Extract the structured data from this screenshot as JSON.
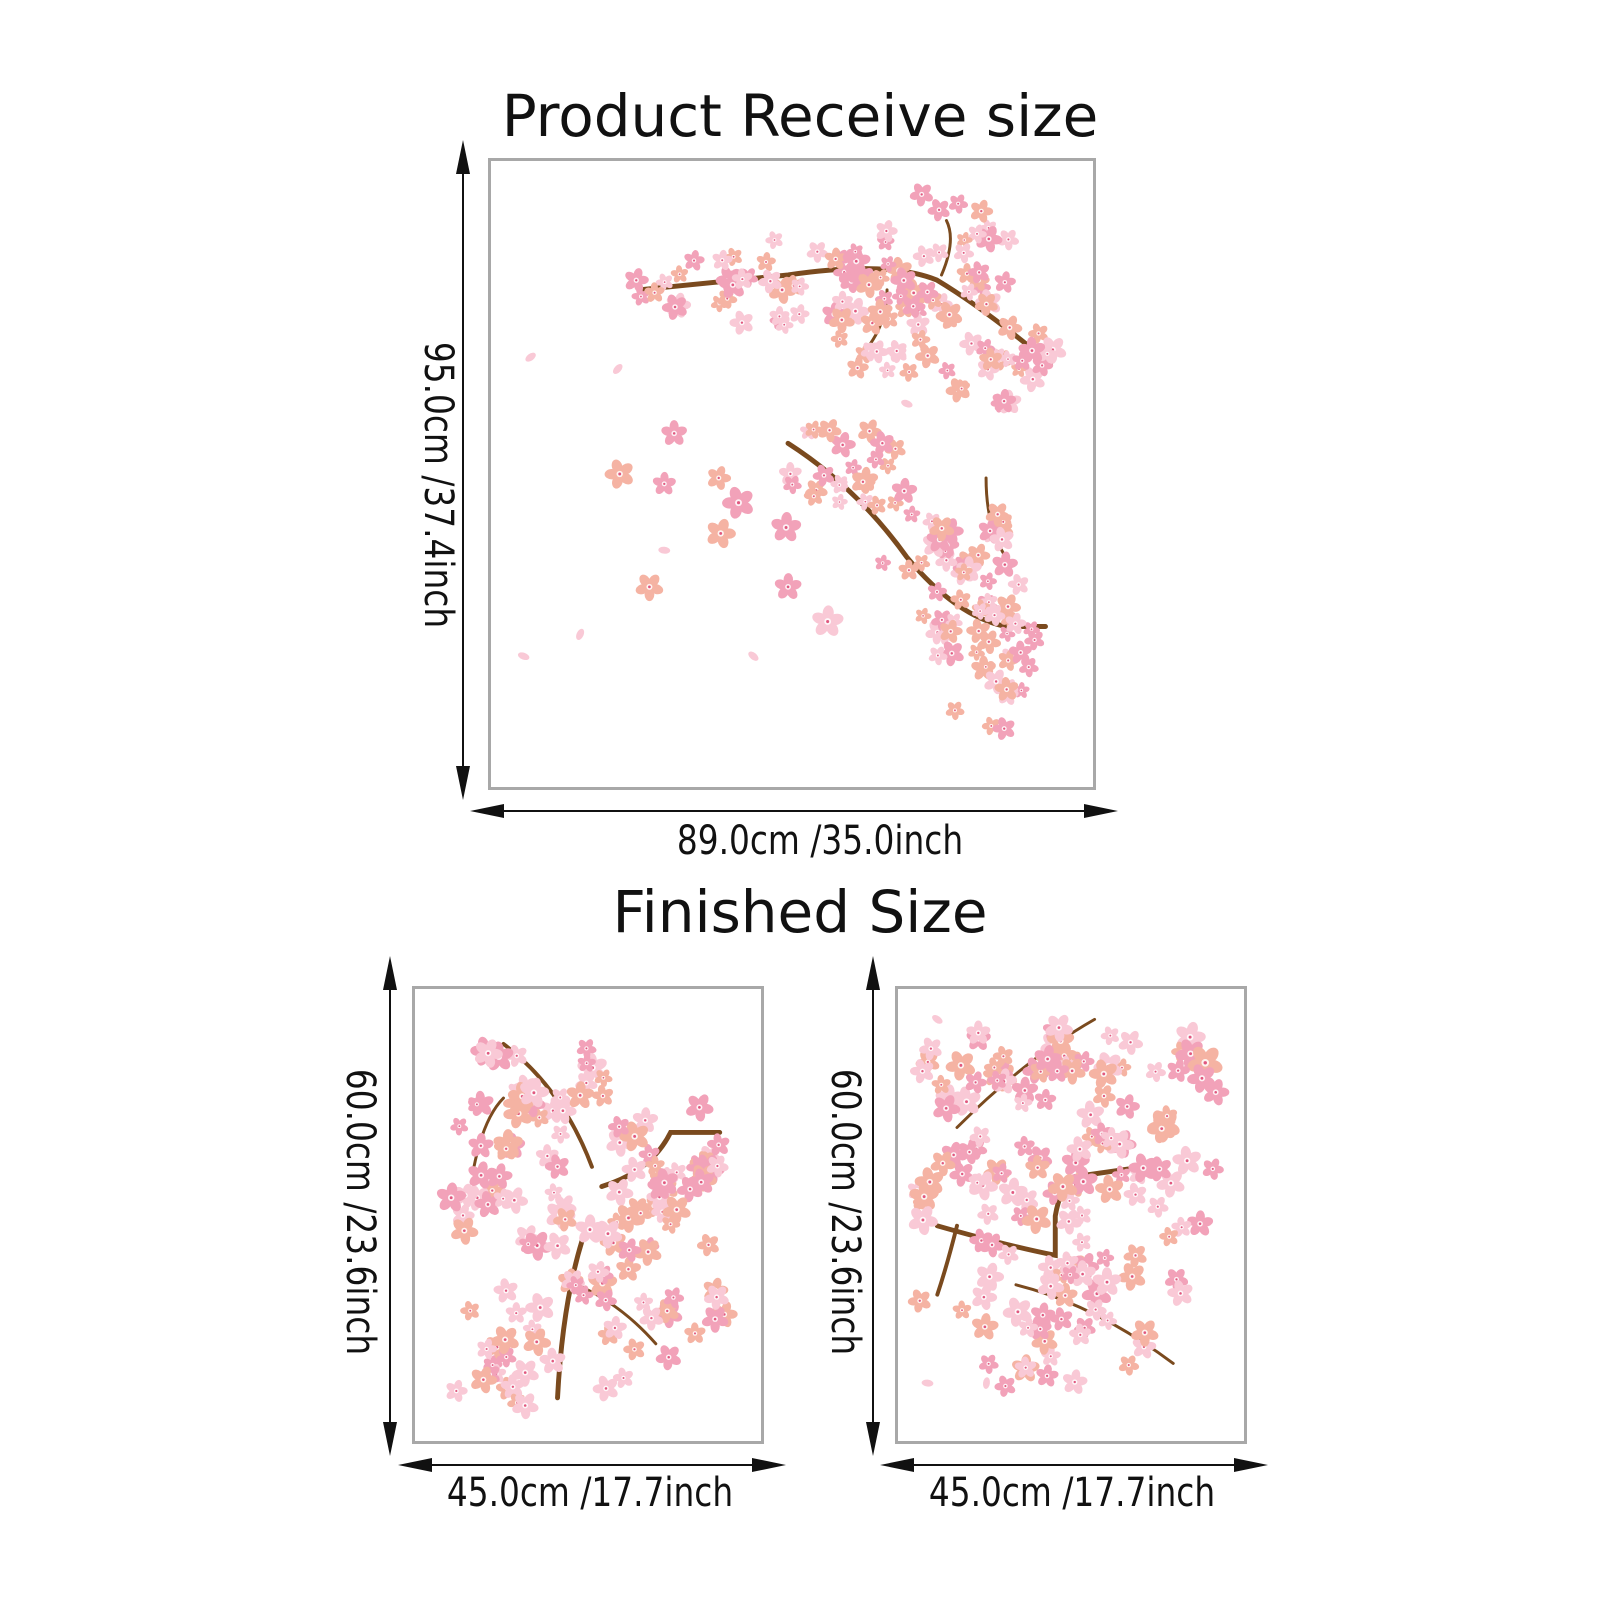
{
  "top": {
    "title": "Product Receive size",
    "width_label": "89.0cm /35.0inch",
    "height_label": "95.0cm /37.4inch"
  },
  "bottom": {
    "title": "Finished Size",
    "left": {
      "width_label": "45.0cm /17.7inch",
      "height_label": "60.0cm /23.6inch"
    },
    "right": {
      "width_label": "45.0cm /17.7inch",
      "height_label": "60.0cm /23.6inch"
    }
  },
  "colors": {
    "blossom_light": "#f9c9d6",
    "blossom_mid": "#f2a2b9",
    "blossom_peach": "#f5b3a3",
    "branch": "#7a4a1e",
    "frame": "#a8a8a8"
  }
}
